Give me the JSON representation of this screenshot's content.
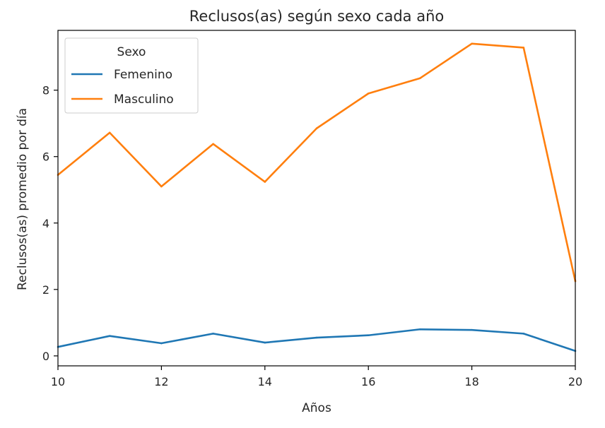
{
  "chart_data": {
    "type": "line",
    "title": "Reclusos(as) según sexo cada año",
    "xlabel": "Años",
    "ylabel": "Reclusos(as) promedio por día",
    "x": [
      10,
      11,
      12,
      13,
      14,
      15,
      16,
      17,
      18,
      19,
      20
    ],
    "xlim": [
      10,
      20
    ],
    "ylim": [
      -0.3,
      9.8
    ],
    "xticks": [
      10,
      12,
      14,
      16,
      18,
      20
    ],
    "yticks": [
      0,
      2,
      4,
      6,
      8
    ],
    "grid": false,
    "legend": {
      "title": "Sexo",
      "placement": "upper-left"
    },
    "series": [
      {
        "name": "Femenino",
        "color": "#1f77b4",
        "values": [
          0.27,
          0.6,
          0.38,
          0.67,
          0.4,
          0.55,
          0.62,
          0.8,
          0.78,
          0.67,
          0.15
        ]
      },
      {
        "name": "Masculino",
        "color": "#ff7f0e",
        "values": [
          5.45,
          6.72,
          5.1,
          6.38,
          5.24,
          6.85,
          7.9,
          8.36,
          9.4,
          9.28,
          2.25
        ]
      }
    ]
  }
}
